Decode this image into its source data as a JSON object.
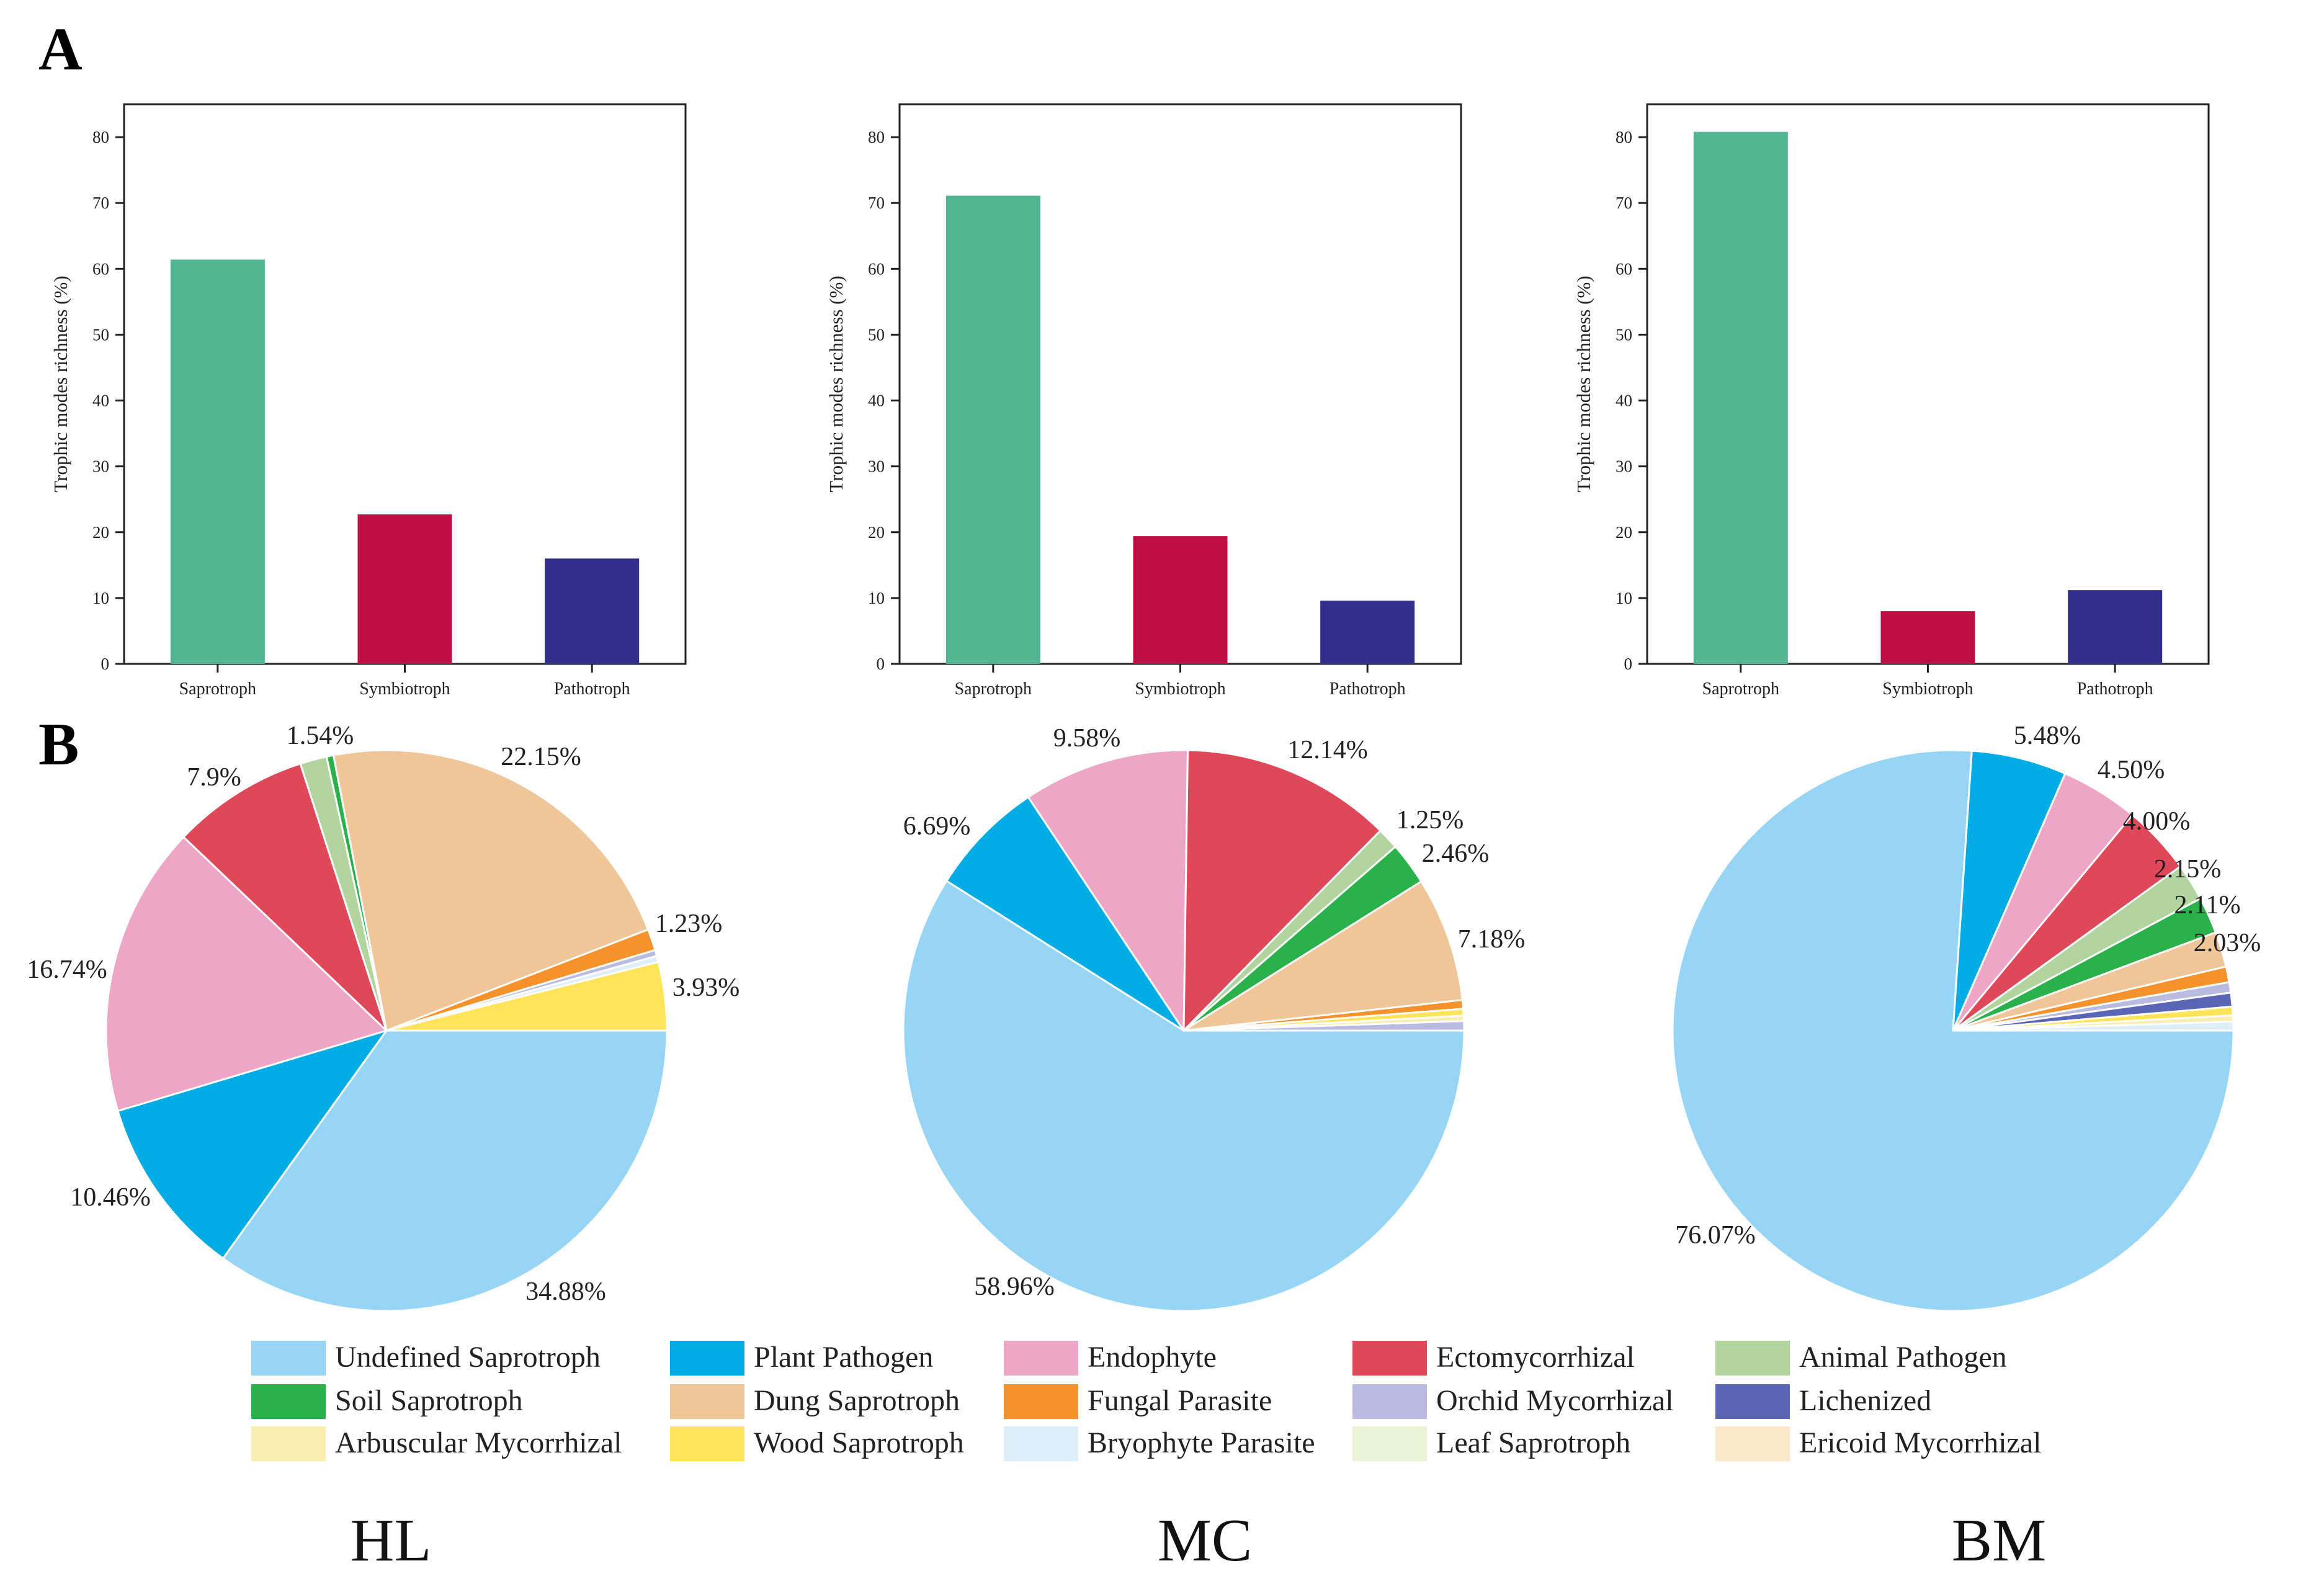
{
  "panel_labels": {
    "a": "A",
    "b": "B"
  },
  "colors": {
    "Saprotroph": "#52b592",
    "Symbiotroph": "#bf0e44",
    "Pathotroph": "#322e8b",
    "Undefined Saprotroph": "#96d5f5",
    "Plant Pathogen": "#01abe4",
    "Endophyte": "#eda6c5",
    "Ectomycorrhizal": "#df4858",
    "Animal Pathogen": "#b2d59f",
    "Soil Saprotroph": "#2ab14c",
    "Dung Saprotroph": "#efc699",
    "Fungal Parasite": "#f6922c",
    "Orchid Mycorrhizal": "#babbe0",
    "Lichenized": "#5b65b5",
    "Arbuscular Mycorrhizal": "#f7eeb0",
    "Wood Saprotroph": "#ffe359",
    "Bryophyte Parasite": "#dfeff9",
    "Leaf Saprotroph": "#e9f4d6",
    "Ericoid Mycorrhizal": "#fde9c9"
  },
  "legend": [
    "Undefined Saprotroph",
    "Plant Pathogen",
    "Endophyte",
    "Ectomycorrhizal",
    "Animal Pathogen",
    "Soil Saprotroph",
    "Dung Saprotroph",
    "Fungal Parasite",
    "Orchid Mycorrhizal",
    "Lichenized",
    "Arbuscular Mycorrhizal",
    "Wood Saprotroph",
    "Bryophyte Parasite",
    "Leaf Saprotroph",
    "Ericoid Mycorrhizal"
  ],
  "chart_data": [
    {
      "type": "bar",
      "site": "HL",
      "categories": [
        "Saprotroph",
        "Symbiotroph",
        "Pathotroph"
      ],
      "values": [
        61.4,
        22.7,
        16.0
      ],
      "ylabel": "Trophic modes richness (%)",
      "ylim": [
        0,
        85
      ],
      "yticks": [
        0,
        10,
        20,
        30,
        40,
        50,
        60,
        70,
        80
      ]
    },
    {
      "type": "bar",
      "site": "MC",
      "categories": [
        "Saprotroph",
        "Symbiotroph",
        "Pathotroph"
      ],
      "values": [
        71.1,
        19.4,
        9.6
      ],
      "ylabel": "Trophic modes richness (%)",
      "ylim": [
        0,
        85
      ],
      "yticks": [
        0,
        10,
        20,
        30,
        40,
        50,
        60,
        70,
        80
      ]
    },
    {
      "type": "bar",
      "site": "BM",
      "categories": [
        "Saprotroph",
        "Symbiotroph",
        "Pathotroph"
      ],
      "values": [
        80.8,
        8.0,
        11.2
      ],
      "ylabel": "Trophic modes richness (%)",
      "ylim": [
        0,
        85
      ],
      "yticks": [
        0,
        10,
        20,
        30,
        40,
        50,
        60,
        70,
        80
      ]
    },
    {
      "type": "pie",
      "site": "HL",
      "title": "HL",
      "slices": [
        {
          "name": "Undefined Saprotroph",
          "value": 34.88,
          "label": "34.88%"
        },
        {
          "name": "Plant Pathogen",
          "value": 10.46,
          "label": "10.46%"
        },
        {
          "name": "Endophyte",
          "value": 16.74,
          "label": "16.74%"
        },
        {
          "name": "Ectomycorrhizal",
          "value": 7.9,
          "label": "7.9%"
        },
        {
          "name": "Animal Pathogen",
          "value": 1.54,
          "label": "1.54%"
        },
        {
          "name": "Soil Saprotroph",
          "value": 0.4,
          "label": ""
        },
        {
          "name": "Dung Saprotroph",
          "value": 22.15,
          "label": "22.15%"
        },
        {
          "name": "Fungal Parasite",
          "value": 1.23,
          "label": "1.23%"
        },
        {
          "name": "Orchid Mycorrhizal",
          "value": 0.35,
          "label": ""
        },
        {
          "name": "Bryophyte Parasite",
          "value": 0.35,
          "label": ""
        },
        {
          "name": "Wood Saprotroph",
          "value": 3.93,
          "label": "3.93%"
        }
      ]
    },
    {
      "type": "pie",
      "site": "MC",
      "title": "MC",
      "slices": [
        {
          "name": "Undefined Saprotroph",
          "value": 58.96,
          "label": "58.96%"
        },
        {
          "name": "Plant Pathogen",
          "value": 6.69,
          "label": "6.69%"
        },
        {
          "name": "Endophyte",
          "value": 9.58,
          "label": "9.58%"
        },
        {
          "name": "Ectomycorrhizal",
          "value": 12.14,
          "label": "12.14%"
        },
        {
          "name": "Animal Pathogen",
          "value": 1.25,
          "label": "1.25%"
        },
        {
          "name": "Soil Saprotroph",
          "value": 2.46,
          "label": "2.46%"
        },
        {
          "name": "Dung Saprotroph",
          "value": 7.18,
          "label": "7.18%"
        },
        {
          "name": "Fungal Parasite",
          "value": 0.5,
          "label": ""
        },
        {
          "name": "Wood Saprotroph",
          "value": 0.4,
          "label": ""
        },
        {
          "name": "Arbuscular Mycorrhizal",
          "value": 0.3,
          "label": ""
        },
        {
          "name": "Orchid Mycorrhizal",
          "value": 0.54,
          "label": ""
        }
      ]
    },
    {
      "type": "pie",
      "site": "BM",
      "title": "BM",
      "slices": [
        {
          "name": "Undefined Saprotroph",
          "value": 76.07,
          "label": "76.07%"
        },
        {
          "name": "Plant Pathogen",
          "value": 5.48,
          "label": "5.48%"
        },
        {
          "name": "Endophyte",
          "value": 4.5,
          "label": "4.50%"
        },
        {
          "name": "Ectomycorrhizal",
          "value": 4.0,
          "label": "4.00%"
        },
        {
          "name": "Animal Pathogen",
          "value": 2.15,
          "label": "2.15%"
        },
        {
          "name": "Soil Saprotroph",
          "value": 2.11,
          "label": "2.11%"
        },
        {
          "name": "Dung Saprotroph",
          "value": 2.03,
          "label": "2.03%"
        },
        {
          "name": "Fungal Parasite",
          "value": 0.9,
          "label": ""
        },
        {
          "name": "Orchid Mycorrhizal",
          "value": 0.6,
          "label": ""
        },
        {
          "name": "Lichenized",
          "value": 0.8,
          "label": ""
        },
        {
          "name": "Wood Saprotroph",
          "value": 0.5,
          "label": ""
        },
        {
          "name": "Arbuscular Mycorrhizal",
          "value": 0.35,
          "label": ""
        },
        {
          "name": "Bryophyte Parasite",
          "value": 0.51,
          "label": ""
        }
      ]
    }
  ]
}
